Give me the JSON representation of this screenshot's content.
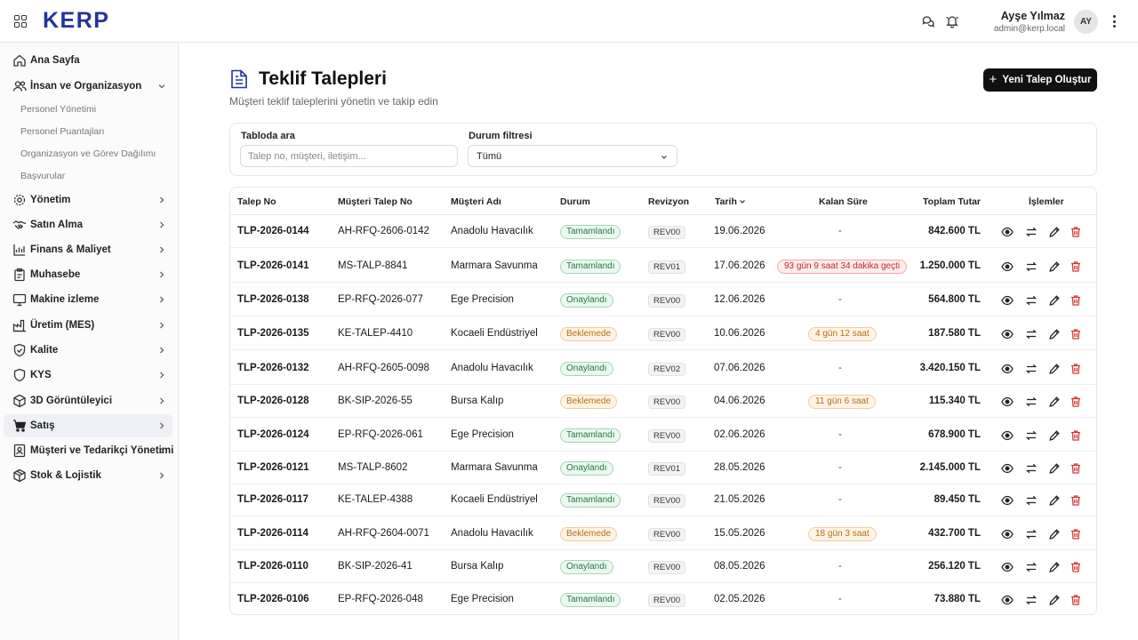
{
  "app": {
    "logo": "KERP"
  },
  "user": {
    "name": "Ayşe Yılmaz",
    "email": "admin@kerp.local",
    "initials": "AY"
  },
  "sidebar": {
    "items": [
      {
        "label": "Ana Sayfa",
        "icon": "home-icon"
      },
      {
        "label": "İnsan ve Organizasyon",
        "icon": "users-icon",
        "expanded": true,
        "children": [
          "Personel Yönetimi",
          "Personel Puantajları",
          "Organizasyon ve Görev Dağılımı",
          "Başvurular"
        ]
      },
      {
        "label": "Yönetim",
        "icon": "gear-icon"
      },
      {
        "label": "Satın Alma",
        "icon": "handshake-icon"
      },
      {
        "label": "Finans & Maliyet",
        "icon": "chart-icon"
      },
      {
        "label": "Muhasebe",
        "icon": "clipboard-icon"
      },
      {
        "label": "Makine izleme",
        "icon": "monitor-icon"
      },
      {
        "label": "Üretim (MES)",
        "icon": "factory-icon"
      },
      {
        "label": "Kalite",
        "icon": "shield-check-icon"
      },
      {
        "label": "KYS",
        "icon": "shield-icon"
      },
      {
        "label": "3D Görüntüleyici",
        "icon": "cube-icon"
      },
      {
        "label": "Satış",
        "icon": "cart-icon",
        "active": true
      },
      {
        "label": "Müşteri ve Tedarikçi Yönetimi",
        "icon": "contacts-icon"
      },
      {
        "label": "Stok & Lojistik",
        "icon": "box-icon"
      }
    ]
  },
  "page": {
    "title": "Teklif Talepleri",
    "subtitle": "Müşteri teklif taleplerini yönetin ve takip edin",
    "new_button": "Yeni Talep Oluştur"
  },
  "filters": {
    "search_label": "Tabloda ara",
    "search_placeholder": "Talep no, müşteri, iletişim...",
    "status_label": "Durum filtresi",
    "status_value": "Tümü"
  },
  "table": {
    "columns": [
      "Talep No",
      "Müşteri Talep No",
      "Müşteri Adı",
      "Durum",
      "Revizyon",
      "Tarih",
      "Kalan Süre",
      "Toplam Tutar",
      "İşlemler"
    ],
    "rows": [
      {
        "no": "TLP-2026-0144",
        "customer_no": "AH-RFQ-2606-0142",
        "customer": "Anadolu Havacılık",
        "status": "Tamamlandı",
        "status_type": "done",
        "revision": "REV00",
        "date": "19.06.2026",
        "remaining": "-",
        "remaining_type": "none",
        "total": "842.600 TL"
      },
      {
        "no": "TLP-2026-0141",
        "customer_no": "MS-TALP-8841",
        "customer": "Marmara Savunma",
        "status": "Tamamlandı",
        "status_type": "done",
        "revision": "REV01",
        "date": "17.06.2026",
        "remaining": "93 gün 9 saat 34 dakika geçti",
        "remaining_type": "overdue",
        "total": "1.250.000 TL"
      },
      {
        "no": "TLP-2026-0138",
        "customer_no": "EP-RFQ-2026-077",
        "customer": "Ege Precision",
        "status": "Onaylandı",
        "status_type": "approved",
        "revision": "REV00",
        "date": "12.06.2026",
        "remaining": "-",
        "remaining_type": "none",
        "total": "564.800 TL"
      },
      {
        "no": "TLP-2026-0135",
        "customer_no": "KE-TALEP-4410",
        "customer": "Kocaeli Endüstriyel",
        "status": "Beklemede",
        "status_type": "pending",
        "revision": "REV00",
        "date": "10.06.2026",
        "remaining": "4 gün 12 saat",
        "remaining_type": "warning",
        "total": "187.580 TL"
      },
      {
        "no": "TLP-2026-0132",
        "customer_no": "AH-RFQ-2605-0098",
        "customer": "Anadolu Havacılık",
        "status": "Onaylandı",
        "status_type": "approved",
        "revision": "REV02",
        "date": "07.06.2026",
        "remaining": "-",
        "remaining_type": "none",
        "total": "3.420.150 TL"
      },
      {
        "no": "TLP-2026-0128",
        "customer_no": "BK-SIP-2026-55",
        "customer": "Bursa Kalıp",
        "status": "Beklemede",
        "status_type": "pending",
        "revision": "REV00",
        "date": "04.06.2026",
        "remaining": "11 gün 6 saat",
        "remaining_type": "warning",
        "total": "115.340 TL"
      },
      {
        "no": "TLP-2026-0124",
        "customer_no": "EP-RFQ-2026-061",
        "customer": "Ege Precision",
        "status": "Tamamlandı",
        "status_type": "done",
        "revision": "REV00",
        "date": "02.06.2026",
        "remaining": "-",
        "remaining_type": "none",
        "total": "678.900 TL"
      },
      {
        "no": "TLP-2026-0121",
        "customer_no": "MS-TALP-8602",
        "customer": "Marmara Savunma",
        "status": "Onaylandı",
        "status_type": "approved",
        "revision": "REV01",
        "date": "28.05.2026",
        "remaining": "-",
        "remaining_type": "none",
        "total": "2.145.000 TL"
      },
      {
        "no": "TLP-2026-0117",
        "customer_no": "KE-TALEP-4388",
        "customer": "Kocaeli Endüstriyel",
        "status": "Tamamlandı",
        "status_type": "done",
        "revision": "REV00",
        "date": "21.05.2026",
        "remaining": "-",
        "remaining_type": "none",
        "total": "89.450 TL"
      },
      {
        "no": "TLP-2026-0114",
        "customer_no": "AH-RFQ-2604-0071",
        "customer": "Anadolu Havacılık",
        "status": "Beklemede",
        "status_type": "pending",
        "revision": "REV00",
        "date": "15.05.2026",
        "remaining": "18 gün 3 saat",
        "remaining_type": "warning",
        "total": "432.700 TL"
      },
      {
        "no": "TLP-2026-0110",
        "customer_no": "BK-SIP-2026-41",
        "customer": "Bursa Kalıp",
        "status": "Onaylandı",
        "status_type": "approved",
        "revision": "REV00",
        "date": "08.05.2026",
        "remaining": "-",
        "remaining_type": "none",
        "total": "256.120 TL"
      },
      {
        "no": "TLP-2026-0106",
        "customer_no": "EP-RFQ-2026-048",
        "customer": "Ege Precision",
        "status": "Tamamlandı",
        "status_type": "done",
        "revision": "REV00",
        "date": "02.05.2026",
        "remaining": "-",
        "remaining_type": "none",
        "total": "73.880 TL"
      }
    ]
  },
  "colors": {
    "brand": "#23339b",
    "done_bg": "#ecf8f0",
    "done_border": "#9fd9b4",
    "done_text": "#1f7a44",
    "pending_bg": "#fdf4e6",
    "pending_border": "#f2cf94",
    "pending_text": "#b86e10",
    "overdue_bg": "#fdecec",
    "overdue_border": "#f2a9a9",
    "overdue_text": "#c62828",
    "delete": "#d93636"
  }
}
